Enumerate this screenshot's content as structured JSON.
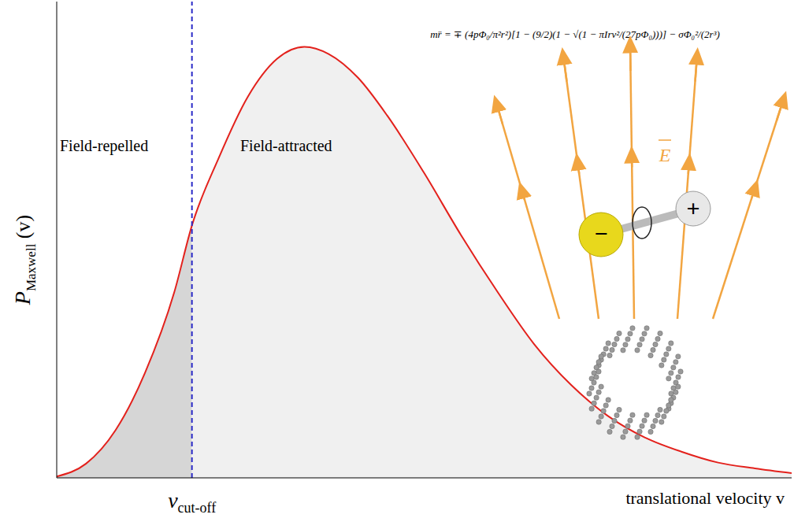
{
  "chart_data": {
    "type": "line",
    "title": "mr̈ = ∓ (4pΦ₀/π²r²)[1 − (9/2)(1 − √(1 − πIrv²/(27pΦ₀)))] − σΦ₀²/(2r³)",
    "xlabel": "translational velocity v",
    "ylabel": {
      "text": "P",
      "sub": "Maxwell",
      "suffix": "(v)"
    },
    "x": [
      0,
      4,
      8,
      12,
      16,
      18.4,
      22,
      26,
      30,
      33.7,
      37,
      41,
      45,
      50,
      55,
      60,
      65,
      70,
      75,
      80,
      85,
      90,
      95,
      100
    ],
    "values": [
      0.3,
      3,
      10,
      22,
      39,
      53,
      67,
      80,
      88,
      90.5,
      89,
      84,
      76,
      64,
      51,
      39,
      28,
      19.5,
      13,
      8.5,
      5.5,
      3.2,
      2,
      1
    ],
    "color": "#e3211c",
    "xlim": [
      0,
      100
    ],
    "ylim": [
      0,
      100
    ],
    "tick_labels": false,
    "cutoff": {
      "x": 18.4,
      "label": "v",
      "label_sub": "cut-off",
      "color": "#2b2bc8",
      "line_style": "dashed"
    },
    "regions": [
      {
        "label": "Field-repelled",
        "color": "#d6d6d6"
      },
      {
        "label": "Field-attracted",
        "color": "#f0f0f0"
      }
    ],
    "annotations": {
      "field_label": "E",
      "charges": [
        "−",
        "+"
      ],
      "field_color": "#f2a541"
    }
  }
}
